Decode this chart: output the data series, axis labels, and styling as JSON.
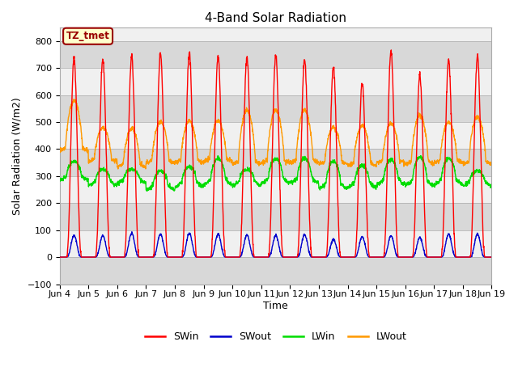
{
  "title": "4-Band Solar Radiation",
  "xlabel": "Time",
  "ylabel": "Solar Radiation (W/m2)",
  "ylim": [
    -100,
    850
  ],
  "yticks": [
    -100,
    0,
    100,
    200,
    300,
    400,
    500,
    600,
    700,
    800
  ],
  "x_tick_labels": [
    "Jun 4",
    "Jun 5",
    "Jun 6",
    "Jun 7",
    "Jun 8",
    "Jun 9",
    "Jun 10",
    "Jun 11",
    "Jun 12",
    "Jun 13",
    "Jun 14",
    "Jun 15",
    "Jun 16",
    "Jun 17",
    "Jun 18",
    "Jun 19"
  ],
  "legend_entries": [
    "SWin",
    "SWout",
    "LWin",
    "LWout"
  ],
  "legend_colors": [
    "#ff0000",
    "#0000cc",
    "#00dd00",
    "#ff9900"
  ],
  "annotation_text": "TZ_tmet",
  "annotation_color": "#990000",
  "annotation_bg": "#ffffcc",
  "bg_color": "#ffffff",
  "plot_bg_light": "#f0f0f0",
  "plot_bg_dark": "#d8d8d8",
  "grid_color": "#cccccc",
  "title_fontsize": 11,
  "axis_fontsize": 9,
  "tick_fontsize": 8,
  "line_width": 1.0,
  "days": 15,
  "swin_peaks": [
    735,
    730,
    745,
    755,
    755,
    745,
    740,
    745,
    730,
    705,
    645,
    760,
    675,
    730,
    745,
    755
  ],
  "swout_peaks": [
    80,
    80,
    88,
    85,
    88,
    85,
    82,
    80,
    83,
    65,
    75,
    80,
    72,
    85,
    85,
    88
  ],
  "lwin_base": [
    305,
    285,
    295,
    270,
    280,
    290,
    285,
    295,
    295,
    275,
    280,
    290,
    285,
    290,
    285,
    290
  ],
  "lwin_peaks": [
    355,
    325,
    325,
    320,
    335,
    365,
    325,
    365,
    365,
    355,
    340,
    360,
    370,
    365,
    320,
    325
  ],
  "lwout_night": [
    405,
    365,
    345,
    360,
    360,
    365,
    355,
    360,
    360,
    355,
    350,
    360,
    355,
    360,
    355,
    365
  ],
  "lwout_peaks": [
    580,
    480,
    475,
    500,
    505,
    505,
    545,
    545,
    545,
    480,
    485,
    495,
    525,
    500,
    520,
    525
  ]
}
